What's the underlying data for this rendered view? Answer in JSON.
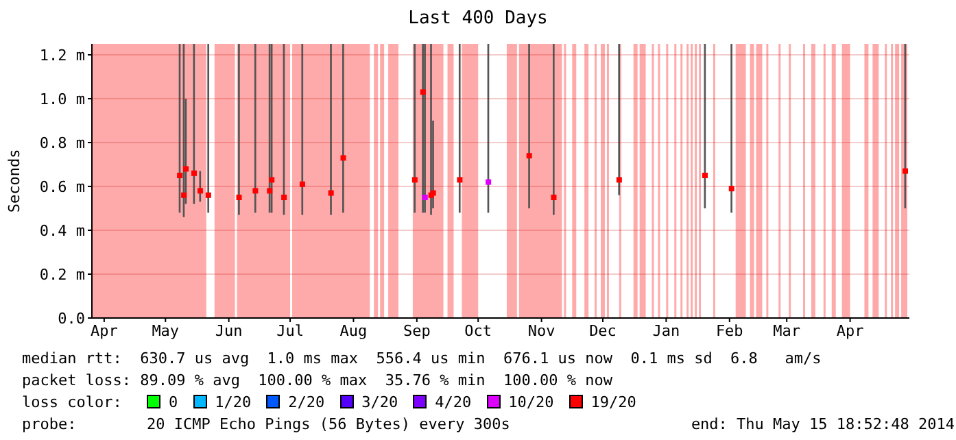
{
  "chart_data": {
    "type": "scatter",
    "title": "Last 400 Days",
    "ylabel": "Seconds",
    "x": [
      "2013-05-23",
      "2013-05-25",
      "2013-05-26",
      "2013-05-30",
      "2013-06-02",
      "2013-06-06",
      "2013-06-21",
      "2013-06-29",
      "2013-07-06",
      "2013-07-07",
      "2013-07-13",
      "2013-07-22",
      "2013-08-05",
      "2013-08-11",
      "2013-09-15",
      "2013-09-19",
      "2013-09-20",
      "2013-09-23",
      "2013-09-24",
      "2013-10-07",
      "2013-10-21",
      "2013-11-10",
      "2013-11-22",
      "2013-12-24",
      "2014-02-04",
      "2014-02-17",
      "2014-05-13"
    ],
    "series": [
      {
        "type": "bar",
        "color": "#555555",
        "base": [
          0.48,
          0.46,
          0.52,
          0.52,
          0.53,
          0.48,
          0.47,
          0.48,
          0.48,
          0.48,
          0.47,
          0.47,
          0.47,
          0.48,
          0.48,
          0.48,
          0.48,
          0.47,
          0.5,
          0.48,
          0.48,
          0.5,
          0.47,
          0.56,
          0.5,
          0.48,
          0.5
        ],
        "values": [
          0.77,
          0.79,
          0.48,
          0.73,
          0.14,
          0.77,
          0.78,
          0.77,
          0.77,
          0.77,
          0.78,
          0.78,
          0.78,
          0.77,
          0.77,
          0.77,
          0.77,
          0.78,
          0.4,
          0.77,
          0.77,
          0.75,
          0.78,
          0.69,
          0.75,
          0.77,
          0.75
        ]
      },
      {
        "color": "#ff0000",
        "colors": [
          "#ff0000",
          "#ff0000",
          "#ff0000",
          "#ff0000",
          "#ff0000",
          "#ff0000",
          "#ff0000",
          "#ff0000",
          "#ff0000",
          "#ff0000",
          "#ff0000",
          "#ff0000",
          "#ff0000",
          "#ff0000",
          "#ff0000",
          "#ff0000",
          "#dd00ff",
          "#ff0000",
          "#ff0000",
          "#ff0000",
          "#dd00ff",
          "#ff0000",
          "#ff0000",
          "#ff0000",
          "#ff0000",
          "#ff0000",
          "#ff0000"
        ],
        "values": [
          0.65,
          0.56,
          0.68,
          0.66,
          0.58,
          0.56,
          0.55,
          0.58,
          0.58,
          0.63,
          0.55,
          0.61,
          0.57,
          0.73,
          0.63,
          1.03,
          0.55,
          0.56,
          0.57,
          0.63,
          0.62,
          0.74,
          0.55,
          0.63,
          0.65,
          0.59,
          0.67
        ]
      }
    ],
    "marker": "square",
    "xlim": [
      "2013-04-10",
      "2014-05-15"
    ],
    "xticks": [
      {
        "value": "2013-04-16",
        "label": "Apr"
      },
      {
        "value": "2013-05-16",
        "label": "May"
      },
      {
        "value": "2013-06-16",
        "label": "Jun"
      },
      {
        "value": "2013-07-16",
        "label": "Jul"
      },
      {
        "value": "2013-08-16",
        "label": "Aug"
      },
      {
        "value": "2013-09-16",
        "label": "Sep"
      },
      {
        "value": "2013-10-16",
        "label": "Oct"
      },
      {
        "value": "2013-11-16",
        "label": "Nov"
      },
      {
        "value": "2013-12-16",
        "label": "Dec"
      },
      {
        "value": "2014-01-16",
        "label": "Jan"
      },
      {
        "value": "2014-02-16",
        "label": "Feb"
      },
      {
        "value": "2014-03-16",
        "label": "Mar"
      },
      {
        "value": "2014-04-16",
        "label": "Apr"
      }
    ],
    "ylim": [
      0,
      1.25
    ],
    "yticks": [
      {
        "value": 0,
        "label": "0.0"
      },
      {
        "value": 0.2,
        "label": "0.2 m"
      },
      {
        "value": 0.4,
        "label": "0.4 m"
      },
      {
        "value": 0.6,
        "label": "0.6 m"
      },
      {
        "value": 0.8,
        "label": "0.8 m"
      },
      {
        "value": 1,
        "label": "1.0 m"
      },
      {
        "value": 1.2,
        "label": "1.2 m"
      }
    ],
    "grid": "y",
    "bands": [
      {
        "axis": "x",
        "from": "2013-04-10",
        "to": "2013-06-05",
        "color": "#ffaaaa"
      },
      {
        "axis": "x",
        "from": "2013-06-09",
        "to": "2013-06-19",
        "color": "#ffaaaa"
      },
      {
        "axis": "x",
        "from": "2013-06-20",
        "to": "2013-07-16",
        "color": "#ffaaaa"
      },
      {
        "axis": "x",
        "from": "2013-07-17",
        "to": "2013-08-24",
        "color": "#ffaaaa"
      },
      {
        "axis": "x",
        "from": "2013-08-26",
        "to": "2013-08-28",
        "color": "#ffaaaa"
      },
      {
        "axis": "x",
        "from": "2013-08-29",
        "to": "2013-08-31",
        "color": "#ffaaaa"
      },
      {
        "axis": "x",
        "from": "2013-09-02",
        "to": "2013-09-07",
        "color": "#ffaaaa"
      },
      {
        "axis": "x",
        "from": "2013-09-14",
        "to": "2013-09-29",
        "color": "#ffaaaa"
      },
      {
        "axis": "x",
        "from": "2013-10-01",
        "to": "2013-10-04",
        "color": "#ffaaaa"
      },
      {
        "axis": "x",
        "from": "2013-10-08",
        "to": "2013-10-16",
        "color": "#ffaaaa"
      },
      {
        "axis": "x",
        "from": "2013-10-30",
        "to": "2013-11-04",
        "color": "#ffaaaa"
      },
      {
        "axis": "x",
        "from": "2013-11-05",
        "to": "2013-11-26",
        "color": "#ffaaaa"
      },
      {
        "axis": "x",
        "from": "2013-11-27",
        "to": "2013-11-28",
        "color": "#ffaaaa"
      },
      {
        "axis": "x",
        "from": "2013-12-01",
        "to": "2013-12-03",
        "color": "#ffaaaa"
      },
      {
        "axis": "x",
        "from": "2013-12-07",
        "to": "2013-12-09",
        "color": "#ffaaaa"
      },
      {
        "axis": "x",
        "from": "2013-12-12",
        "to": "2013-12-13",
        "color": "#ffaaaa"
      },
      {
        "axis": "x",
        "from": "2013-12-15",
        "to": "2013-12-17",
        "color": "#ffaaaa"
      },
      {
        "axis": "x",
        "from": "2013-12-18",
        "to": "2013-12-19",
        "color": "#ffaaaa"
      },
      {
        "axis": "x",
        "from": "2013-12-24",
        "to": "2013-12-25",
        "color": "#ffaaaa"
      },
      {
        "axis": "x",
        "from": "2013-12-31",
        "to": "2014-01-02",
        "color": "#ffaaaa"
      },
      {
        "axis": "x",
        "from": "2014-01-03",
        "to": "2014-01-06",
        "color": "#ffaaaa"
      },
      {
        "axis": "x",
        "from": "2014-01-09",
        "to": "2014-01-10",
        "color": "#ffaaaa"
      },
      {
        "axis": "x",
        "from": "2014-01-12",
        "to": "2014-01-13",
        "color": "#ffaaaa"
      },
      {
        "axis": "x",
        "from": "2014-01-16",
        "to": "2014-01-17",
        "color": "#ffaaaa"
      },
      {
        "axis": "x",
        "from": "2014-01-20",
        "to": "2014-01-21",
        "color": "#ffaaaa"
      },
      {
        "axis": "x",
        "from": "2014-01-23",
        "to": "2014-01-24",
        "color": "#ffaaaa"
      },
      {
        "axis": "x",
        "from": "2014-01-26",
        "to": "2014-01-27",
        "color": "#ffaaaa"
      },
      {
        "axis": "x",
        "from": "2014-01-28",
        "to": "2014-01-29",
        "color": "#ffaaaa"
      },
      {
        "axis": "x",
        "from": "2014-01-30",
        "to": "2014-01-31",
        "color": "#ffaaaa"
      },
      {
        "axis": "x",
        "from": "2014-02-01",
        "to": "2014-02-02",
        "color": "#ffaaaa"
      },
      {
        "axis": "x",
        "from": "2014-02-08",
        "to": "2014-02-09",
        "color": "#ffaaaa"
      },
      {
        "axis": "x",
        "from": "2014-02-19",
        "to": "2014-02-24",
        "color": "#ffaaaa"
      },
      {
        "axis": "x",
        "from": "2014-02-26",
        "to": "2014-02-28",
        "color": "#ffaaaa"
      },
      {
        "axis": "x",
        "from": "2014-03-01",
        "to": "2014-03-04",
        "color": "#ffaaaa"
      },
      {
        "axis": "x",
        "from": "2014-03-06",
        "to": "2014-03-07",
        "color": "#ffaaaa"
      },
      {
        "axis": "x",
        "from": "2014-03-12",
        "to": "2014-03-13",
        "color": "#ffaaaa"
      },
      {
        "axis": "x",
        "from": "2014-03-17",
        "to": "2014-03-18",
        "color": "#ffaaaa"
      },
      {
        "axis": "x",
        "from": "2014-03-24",
        "to": "2014-03-25",
        "color": "#ffaaaa"
      },
      {
        "axis": "x",
        "from": "2014-03-28",
        "to": "2014-03-30",
        "color": "#ffaaaa"
      },
      {
        "axis": "x",
        "from": "2014-04-03",
        "to": "2014-04-04",
        "color": "#ffaaaa"
      },
      {
        "axis": "x",
        "from": "2014-04-07",
        "to": "2014-04-09",
        "color": "#ffaaaa"
      },
      {
        "axis": "x",
        "from": "2014-04-12",
        "to": "2014-04-16",
        "color": "#ffaaaa"
      },
      {
        "axis": "x",
        "from": "2014-04-23",
        "to": "2014-04-25",
        "color": "#ffaaaa"
      },
      {
        "axis": "x",
        "from": "2014-04-27",
        "to": "2014-04-30",
        "color": "#ffaaaa"
      },
      {
        "axis": "x",
        "from": "2014-05-03",
        "to": "2014-05-04",
        "color": "#ffaaaa"
      },
      {
        "axis": "x",
        "from": "2014-05-06",
        "to": "2014-05-07",
        "color": "#ffaaaa"
      },
      {
        "axis": "x",
        "from": "2014-05-08",
        "to": "2014-05-10",
        "color": "#ffaaaa"
      },
      {
        "axis": "x",
        "from": "2014-05-11",
        "to": "2014-05-14",
        "color": "#ffaaaa"
      }
    ],
    "annotations": [
      "median rtt:  630.7 us avg  1.0 ms max  556.4 us min  676.1 us now  0.1 ms sd  6.8   am/s",
      "packet loss: 89.09 % avg  100.00 % max  35.76 % min  100.00 % now",
      "loss color:",
      "0",
      "1/20",
      "2/20",
      "3/20",
      "4/20",
      "10/20",
      "19/20",
      "probe:",
      "20 ICMP Echo Pings (56 Bytes) every 300s",
      "end: Thu May 15 18:52:48 2014"
    ]
  }
}
